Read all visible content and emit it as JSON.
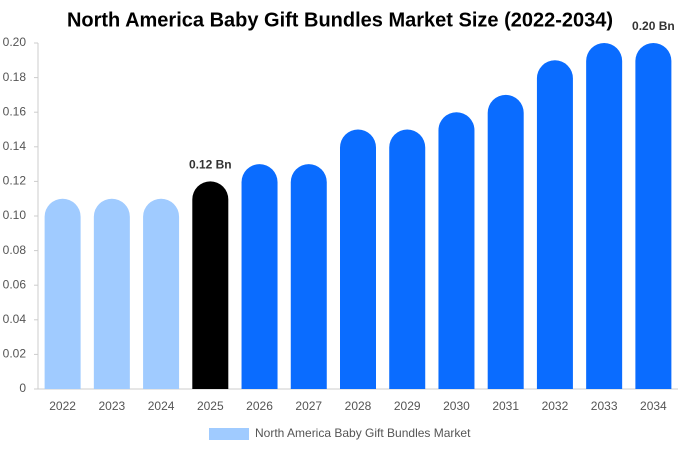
{
  "chart_data": {
    "type": "bar",
    "title": "North America Baby Gift Bundles Market Size (2022-2034)",
    "categories": [
      "2022",
      "2023",
      "2024",
      "2025",
      "2026",
      "2027",
      "2028",
      "2029",
      "2030",
      "2031",
      "2032",
      "2033",
      "2034"
    ],
    "series": [
      {
        "name": "North America Baby Gift Bundles Market",
        "color": "#a0cbff",
        "values": [
          0.11,
          0.11,
          0.11,
          0.12,
          0.13,
          0.13,
          0.15,
          0.15,
          0.16,
          0.17,
          0.19,
          0.2,
          0.2
        ],
        "value_labels": [
          null,
          null,
          null,
          "0.12 Bn",
          null,
          null,
          null,
          null,
          null,
          null,
          null,
          null,
          "0.20 Bn"
        ],
        "colors": [
          "#a0cbff",
          "#a0cbff",
          "#a0cbff",
          "#000000",
          "#0a6cff",
          "#0a6cff",
          "#0a6cff",
          "#0a6cff",
          "#0a6cff",
          "#0a6cff",
          "#0a6cff",
          "#0a6cff",
          "#0a6cff"
        ]
      }
    ],
    "ylim": [
      0,
      0.2
    ],
    "yticks": [
      0,
      0.02,
      0.04,
      0.06,
      0.08,
      {
        "value": 0.1,
        "label": "0.10"
      },
      0.12,
      0.14,
      0.16,
      0.18,
      {
        "value": 0.2,
        "label": "0.20"
      }
    ],
    "grid": false
  }
}
